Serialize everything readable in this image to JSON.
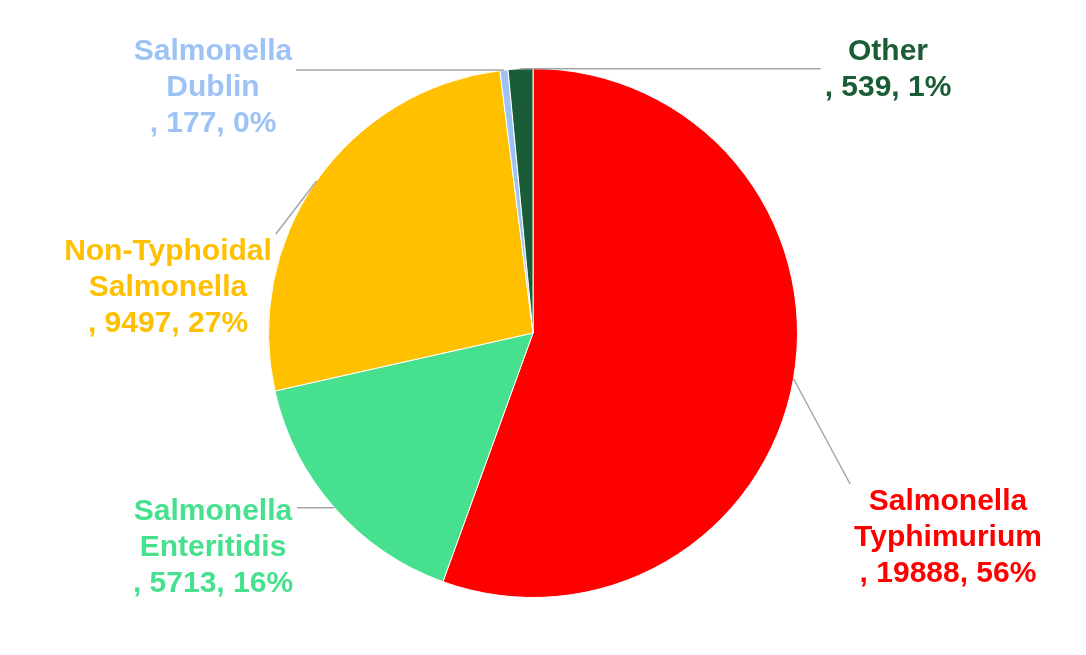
{
  "chart_data": {
    "type": "pie",
    "categories": [
      "Salmonella Typhimurium",
      "Salmonella Enteritidis",
      "Non-Typhoidal Salmonella",
      "Salmonella Dublin",
      "Other"
    ],
    "values": [
      19888,
      5713,
      9497,
      177,
      539
    ],
    "value_labels": [
      ", 19888, 56%",
      ", 5713, 16%",
      ", 9497, 27%",
      ", 177, 0%",
      ", 539, 1%"
    ],
    "colors": [
      "#ff0000",
      "#47e08e",
      "#ffc000",
      "#9dc3f6",
      "#1a5c36"
    ],
    "legend": false
  }
}
